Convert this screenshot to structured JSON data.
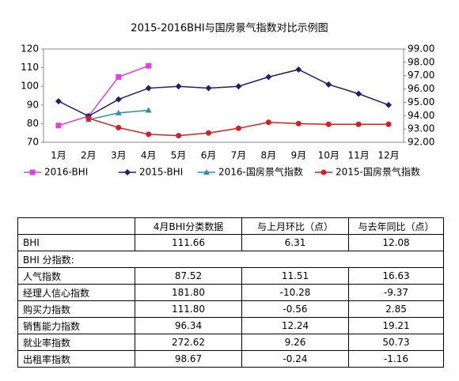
{
  "chart_data": {
    "type": "line",
    "title": "2015-2016BHI与国房景气指数对比示例图",
    "categories": [
      "1月",
      "2月",
      "3月",
      "4月",
      "5月",
      "6月",
      "7月",
      "8月",
      "9月",
      "10月",
      "11月",
      "12月"
    ],
    "series": [
      {
        "name": "2016-BHI",
        "color": "#e040e0",
        "marker": "square",
        "values": [
          79,
          84,
          105,
          111,
          null,
          null,
          null,
          null,
          null,
          null,
          null,
          null
        ]
      },
      {
        "name": "2015-BHI",
        "color": "#1f1f6e",
        "marker": "diamond",
        "values": [
          92,
          84,
          93,
          99,
          100,
          99,
          100,
          105,
          109,
          101,
          96,
          90
        ]
      },
      {
        "name": "2016-国房景气指数",
        "color": "#2a8fb0",
        "marker": "triangle",
        "axis": "y2",
        "values": [
          null,
          93.7,
          94.2,
          94.4,
          null,
          null,
          null,
          null,
          null,
          null,
          null,
          null
        ]
      },
      {
        "name": "2015-国房景气指数",
        "color": "#d42020",
        "marker": "circle",
        "axis": "y2",
        "values": [
          null,
          93.8,
          93.1,
          92.6,
          92.5,
          92.7,
          93.05,
          93.5,
          93.4,
          93.35,
          93.35,
          93.35
        ]
      }
    ],
    "ylim": [
      70,
      120
    ],
    "yticks": [
      70,
      80,
      90,
      100,
      110,
      120
    ],
    "y2lim": [
      92,
      99
    ],
    "y2ticks": [
      {
        "value": 92,
        "label": "92.00"
      },
      {
        "value": 93,
        "label": "93.00"
      },
      {
        "value": 94,
        "label": "94.00"
      },
      {
        "value": 95,
        "label": "95.00"
      },
      {
        "value": 96,
        "label": "96.00"
      },
      {
        "value": 97,
        "label": "97.00"
      },
      {
        "value": 98,
        "label": "98.00"
      },
      {
        "value": 99,
        "label": "99.00"
      }
    ],
    "legend": "bottom"
  },
  "table": {
    "header": [
      "4月BHI分类数据",
      "与上月环比（点）",
      "与去年同比（点）"
    ],
    "rows": [
      [
        "BHI",
        "111.66",
        "6.31",
        "12.08"
      ],
      [
        "BHI 分指数:"
      ],
      [
        "人气指数",
        "87.52",
        "11.51",
        "16.63"
      ],
      [
        "经理人信心指数",
        "181.80",
        "-10.28",
        "-9.37"
      ],
      [
        "购买力指数",
        "111.80",
        "-0.56",
        "2.85"
      ],
      [
        "销售能力指数",
        "96.34",
        "12.24",
        "19.21"
      ],
      [
        "就业率指数",
        "272.62",
        "9.26",
        "50.73"
      ],
      [
        "出租率指数",
        "98.67",
        "-0.24",
        "-1.16"
      ]
    ]
  }
}
